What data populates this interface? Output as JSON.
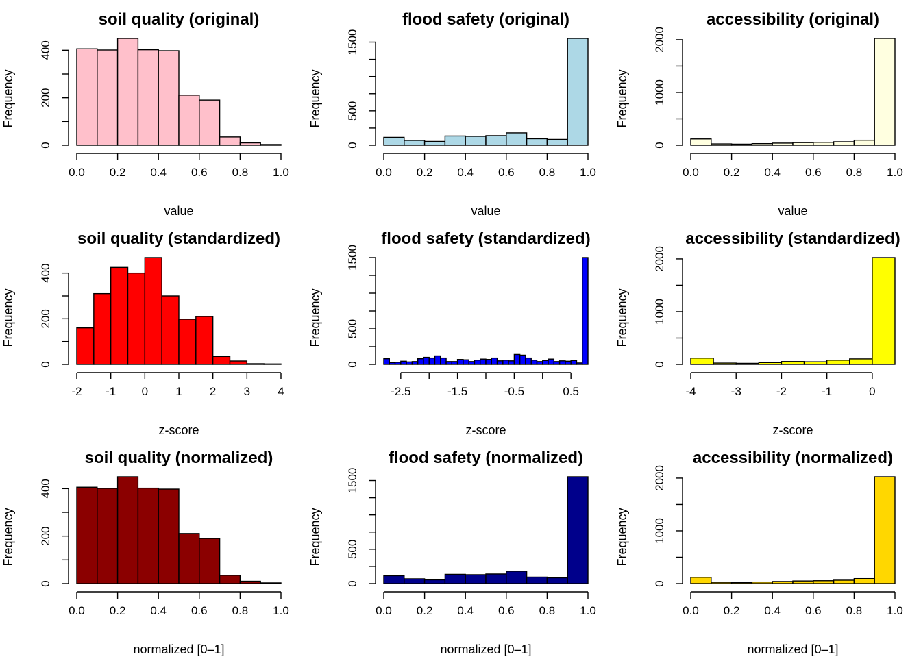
{
  "figure": {
    "description_text": ""
  },
  "chart_data": [
    {
      "type": "bar",
      "title": "soil quality (original)",
      "xlabel": "value",
      "ylabel": "Frequency",
      "color": "#FFC0CB",
      "bin_edges": [
        0.0,
        0.1,
        0.2,
        0.3,
        0.4,
        0.5,
        0.6,
        0.7,
        0.8,
        0.9,
        1.0
      ],
      "values": [
        406,
        401,
        450,
        402,
        398,
        211,
        190,
        35,
        10,
        3
      ],
      "xlim": [
        0.0,
        1.0
      ],
      "ylim": [
        0,
        450
      ],
      "xticks": [
        0.0,
        0.2,
        0.4,
        0.6,
        0.8,
        1.0
      ],
      "xtick_labels": [
        "0.0",
        "0.2",
        "0.4",
        "0.6",
        "0.8",
        "1.0"
      ],
      "yticks": [
        0,
        100,
        200,
        300,
        400
      ],
      "ytick_labels": [
        "0",
        "",
        "200",
        "",
        "400"
      ]
    },
    {
      "type": "bar",
      "title": "flood safety (original)",
      "xlabel": "value",
      "ylabel": "Frequency",
      "color": "#ADD8E6",
      "bin_edges": [
        0.0,
        0.1,
        0.2,
        0.3,
        0.4,
        0.5,
        0.6,
        0.7,
        0.8,
        0.9,
        1.0
      ],
      "values": [
        115,
        70,
        55,
        135,
        130,
        140,
        180,
        95,
        85,
        1555
      ],
      "xlim": [
        0.0,
        1.0
      ],
      "ylim": [
        0,
        1555
      ],
      "xticks": [
        0.0,
        0.2,
        0.4,
        0.6,
        0.8,
        1.0
      ],
      "xtick_labels": [
        "0.0",
        "0.2",
        "0.4",
        "0.6",
        "0.8",
        "1.0"
      ],
      "yticks": [
        0,
        250,
        500,
        750,
        1000,
        1250,
        1500
      ],
      "ytick_labels": [
        "0",
        "",
        "500",
        "",
        "",
        "",
        "1500"
      ]
    },
    {
      "type": "bar",
      "title": "accessibility (original)",
      "xlabel": "value",
      "ylabel": "Frequency",
      "color": "#FFFFE0",
      "bin_edges": [
        0.0,
        0.1,
        0.2,
        0.3,
        0.4,
        0.5,
        0.6,
        0.7,
        0.8,
        0.9,
        1.0
      ],
      "values": [
        120,
        25,
        20,
        30,
        40,
        50,
        55,
        65,
        95,
        2025
      ],
      "xlim": [
        0.0,
        1.0
      ],
      "ylim": [
        0,
        2025
      ],
      "xticks": [
        0.0,
        0.2,
        0.4,
        0.6,
        0.8,
        1.0
      ],
      "xtick_labels": [
        "0.0",
        "0.2",
        "0.4",
        "0.6",
        "0.8",
        "1.0"
      ],
      "yticks": [
        0,
        500,
        1000,
        1500,
        2000
      ],
      "ytick_labels": [
        "0",
        "",
        "1000",
        "",
        "2000"
      ]
    },
    {
      "type": "bar",
      "title": "soil quality (standardized)",
      "xlabel": "z-score",
      "ylabel": "Frequency",
      "color": "#FF0000",
      "bin_edges": [
        -2.0,
        -1.5,
        -1.0,
        -0.5,
        0.0,
        0.5,
        1.0,
        1.5,
        2.0,
        2.5,
        3.0,
        3.5,
        4.0
      ],
      "values": [
        160,
        310,
        425,
        400,
        468,
        300,
        198,
        210,
        35,
        15,
        3,
        2
      ],
      "xlim": [
        -2.0,
        4.0
      ],
      "ylim": [
        0,
        468
      ],
      "xticks": [
        -2,
        -1,
        0,
        1,
        2,
        3,
        4
      ],
      "xtick_labels": [
        "-2",
        "-1",
        "0",
        "1",
        "2",
        "3",
        "4"
      ],
      "yticks": [
        0,
        100,
        200,
        300,
        400
      ],
      "ytick_labels": [
        "0",
        "",
        "200",
        "",
        "400"
      ]
    },
    {
      "type": "bar",
      "title": "flood safety (standardized)",
      "xlabel": "z-score",
      "ylabel": "Frequency",
      "color": "#0000FF",
      "bin_edges": [
        -2.8,
        -2.7,
        -2.6,
        -2.5,
        -2.4,
        -2.3,
        -2.2,
        -2.1,
        -2.0,
        -1.9,
        -1.8,
        -1.7,
        -1.6,
        -1.5,
        -1.4,
        -1.3,
        -1.2,
        -1.1,
        -1.0,
        -0.9,
        -0.8,
        -0.7,
        -0.6,
        -0.5,
        -0.4,
        -0.3,
        -0.2,
        -0.1,
        0.0,
        0.1,
        0.2,
        0.3,
        0.4,
        0.5,
        0.6,
        0.7,
        0.8
      ],
      "values": [
        80,
        25,
        30,
        45,
        35,
        40,
        80,
        100,
        90,
        120,
        90,
        40,
        40,
        70,
        65,
        40,
        60,
        75,
        70,
        90,
        50,
        60,
        50,
        140,
        130,
        90,
        60,
        40,
        55,
        75,
        40,
        50,
        45,
        55,
        20,
        1500
      ],
      "xlim": [
        -2.8,
        0.8
      ],
      "ylim": [
        0,
        1500
      ],
      "xticks": [
        -2.5,
        -2.0,
        -1.5,
        -1.0,
        -0.5,
        0.0,
        0.5
      ],
      "xtick_labels": [
        "-2.5",
        "",
        "-1.5",
        "",
        "-0.5",
        "",
        "0.5"
      ],
      "yticks": [
        0,
        250,
        500,
        750,
        1000,
        1250,
        1500
      ],
      "ytick_labels": [
        "0",
        "",
        "500",
        "",
        "",
        "",
        "1500"
      ]
    },
    {
      "type": "bar",
      "title": "accessibility (standardized)",
      "xlabel": "z-score",
      "ylabel": "Frequency",
      "color": "#FFFF00",
      "bin_edges": [
        -4.0,
        -3.5,
        -3.0,
        -2.5,
        -2.0,
        -1.5,
        -1.0,
        -0.5,
        0.0,
        0.5
      ],
      "values": [
        120,
        25,
        20,
        35,
        55,
        50,
        80,
        105,
        2025
      ],
      "xlim": [
        -4.0,
        0.5
      ],
      "ylim": [
        0,
        2025
      ],
      "xticks": [
        -4,
        -3,
        -2,
        -1,
        0
      ],
      "xtick_labels": [
        "-4",
        "-3",
        "-2",
        "-1",
        "0"
      ],
      "yticks": [
        0,
        500,
        1000,
        1500,
        2000
      ],
      "ytick_labels": [
        "0",
        "",
        "1000",
        "",
        "2000"
      ]
    },
    {
      "type": "bar",
      "title": "soil quality (normalized)",
      "xlabel": "normalized [0–1]",
      "ylabel": "Frequency",
      "color": "#8B0000",
      "bin_edges": [
        0.0,
        0.1,
        0.2,
        0.3,
        0.4,
        0.5,
        0.6,
        0.7,
        0.8,
        0.9,
        1.0
      ],
      "values": [
        406,
        401,
        450,
        402,
        398,
        211,
        190,
        35,
        10,
        3
      ],
      "xlim": [
        0.0,
        1.0
      ],
      "ylim": [
        0,
        450
      ],
      "xticks": [
        0.0,
        0.2,
        0.4,
        0.6,
        0.8,
        1.0
      ],
      "xtick_labels": [
        "0.0",
        "0.2",
        "0.4",
        "0.6",
        "0.8",
        "1.0"
      ],
      "yticks": [
        0,
        100,
        200,
        300,
        400
      ],
      "ytick_labels": [
        "0",
        "",
        "200",
        "",
        "400"
      ]
    },
    {
      "type": "bar",
      "title": "flood safety (normalized)",
      "xlabel": "normalized [0–1]",
      "ylabel": "Frequency",
      "color": "#00008B",
      "bin_edges": [
        0.0,
        0.1,
        0.2,
        0.3,
        0.4,
        0.5,
        0.6,
        0.7,
        0.8,
        0.9,
        1.0
      ],
      "values": [
        115,
        70,
        55,
        135,
        130,
        140,
        180,
        95,
        85,
        1555
      ],
      "xlim": [
        0.0,
        1.0
      ],
      "ylim": [
        0,
        1555
      ],
      "xticks": [
        0.0,
        0.2,
        0.4,
        0.6,
        0.8,
        1.0
      ],
      "xtick_labels": [
        "0.0",
        "0.2",
        "0.4",
        "0.6",
        "0.8",
        "1.0"
      ],
      "yticks": [
        0,
        250,
        500,
        750,
        1000,
        1250,
        1500
      ],
      "ytick_labels": [
        "0",
        "",
        "500",
        "",
        "",
        "",
        "1500"
      ]
    },
    {
      "type": "bar",
      "title": "accessibility (normalized)",
      "xlabel": "normalized [0–1]",
      "ylabel": "Frequency",
      "color": "#FFD700",
      "bin_edges": [
        0.0,
        0.1,
        0.2,
        0.3,
        0.4,
        0.5,
        0.6,
        0.7,
        0.8,
        0.9,
        1.0
      ],
      "values": [
        120,
        25,
        20,
        30,
        40,
        50,
        55,
        65,
        95,
        2025
      ],
      "xlim": [
        0.0,
        1.0
      ],
      "ylim": [
        0,
        2025
      ],
      "xticks": [
        0.0,
        0.2,
        0.4,
        0.6,
        0.8,
        1.0
      ],
      "xtick_labels": [
        "0.0",
        "0.2",
        "0.4",
        "0.6",
        "0.8",
        "1.0"
      ],
      "yticks": [
        0,
        500,
        1000,
        1500,
        2000
      ],
      "ytick_labels": [
        "0",
        "",
        "1000",
        "",
        "2000"
      ]
    }
  ]
}
